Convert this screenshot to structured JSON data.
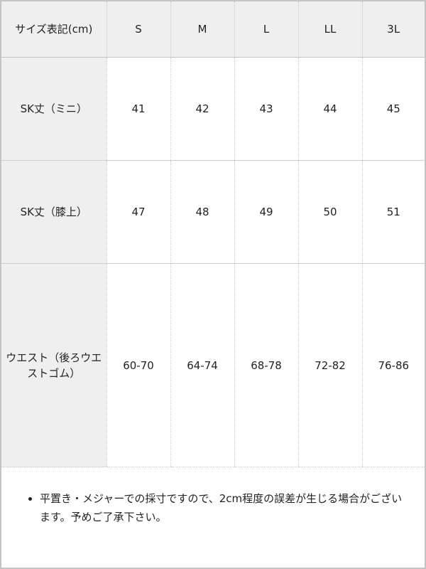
{
  "table": {
    "headers": [
      "サイズ表記(cm)",
      "S",
      "M",
      "L",
      "LL",
      "3L"
    ],
    "rows": [
      {
        "label": "SK丈（ミニ）",
        "values": [
          "41",
          "42",
          "43",
          "44",
          "45"
        ]
      },
      {
        "label": "SK丈（膝上）",
        "values": [
          "47",
          "48",
          "49",
          "50",
          "51"
        ]
      },
      {
        "label": "ウエスト（後ろウエストゴム）",
        "values": [
          "60-70",
          "64-74",
          "68-78",
          "72-82",
          "76-86"
        ]
      }
    ]
  },
  "note": "平置き・メジャーでの採寸ですので、2cm程度の誤差が生じる場合がございます。予めご了承下さい。"
}
